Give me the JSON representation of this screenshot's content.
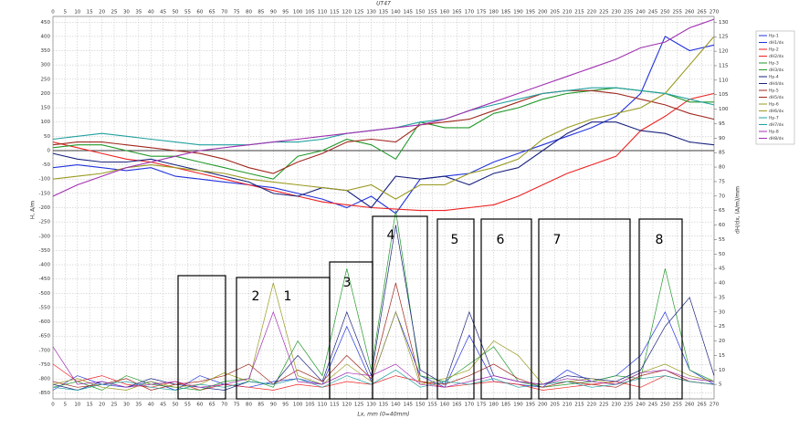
{
  "chart_data": {
    "type": "line",
    "title": "UT47",
    "x_label": "Lx, mm (0=40mm)",
    "y_label": "H, A/m",
    "y2_label": "dH/dx, (A/m)/mm",
    "x": [
      0,
      10,
      20,
      30,
      40,
      50,
      60,
      70,
      80,
      90,
      100,
      110,
      120,
      130,
      140,
      150,
      160,
      170,
      180,
      190,
      200,
      210,
      220,
      230,
      240,
      250,
      260,
      270
    ],
    "xlim": [
      0,
      270
    ],
    "ylim": [
      -870,
      470
    ],
    "y2lim": [
      0,
      132
    ],
    "grid": true,
    "legend": "right",
    "xticks": [
      0,
      5,
      10,
      15,
      20,
      25,
      30,
      35,
      40,
      45,
      50,
      55,
      60,
      65,
      70,
      75,
      80,
      85,
      90,
      95,
      100,
      105,
      110,
      115,
      120,
      125,
      130,
      135,
      140,
      145,
      150,
      155,
      160,
      165,
      170,
      175,
      180,
      185,
      190,
      195,
      200,
      205,
      210,
      215,
      220,
      225,
      230,
      235,
      240,
      245,
      250,
      255,
      260,
      265,
      270
    ],
    "yticks": [
      450,
      400,
      350,
      300,
      250,
      200,
      150,
      100,
      50,
      0,
      -50,
      -100,
      -150,
      -200,
      -250,
      -300,
      -350,
      -400,
      -450,
      -500,
      -550,
      -600,
      -650,
      -700,
      -750,
      -800,
      -850
    ],
    "y2ticks": [
      5,
      10,
      15,
      20,
      25,
      30,
      35,
      40,
      45,
      50,
      55,
      60,
      65,
      70,
      75,
      80,
      85,
      90,
      95,
      100,
      105,
      110,
      115,
      120,
      125,
      130
    ],
    "annotations": [
      "1",
      "2",
      "3",
      "4",
      "5",
      "6",
      "7",
      "8"
    ],
    "series": [
      {
        "name": "Hp-1",
        "color": "#2233dd",
        "values": [
          -60,
          -50,
          -60,
          -70,
          -60,
          -90,
          -100,
          -110,
          -120,
          -130,
          -150,
          -170,
          -200,
          -160,
          -220,
          -100,
          -90,
          -80,
          -40,
          -10,
          20,
          50,
          80,
          120,
          200,
          400,
          350,
          370
        ]
      },
      {
        "name": "dH1/dx",
        "color": "#2233dd",
        "axis": "y2",
        "values": [
          3,
          8,
          5,
          4,
          6,
          3,
          8,
          5,
          4,
          6,
          7,
          5,
          25,
          6,
          30,
          8,
          4,
          22,
          6,
          5,
          4,
          10,
          6,
          8,
          15,
          30,
          10,
          5
        ]
      },
      {
        "name": "Hp-2",
        "color": "#ee2222",
        "values": [
          30,
          10,
          -10,
          -30,
          -40,
          -60,
          -80,
          -100,
          -120,
          -140,
          -160,
          -180,
          -190,
          -200,
          -205,
          -210,
          -210,
          -200,
          -190,
          -160,
          -120,
          -80,
          -50,
          -20,
          70,
          120,
          180,
          200
        ]
      },
      {
        "name": "dH2/dx",
        "color": "#ee2222",
        "axis": "y2",
        "values": [
          12,
          6,
          8,
          5,
          4,
          6,
          3,
          5,
          4,
          3,
          5,
          4,
          6,
          5,
          8,
          6,
          4,
          5,
          6,
          5,
          3,
          4,
          5,
          6,
          4,
          8,
          6,
          5
        ]
      },
      {
        "name": "Hp-3",
        "color": "#22992a",
        "values": [
          10,
          20,
          20,
          0,
          -20,
          -20,
          -40,
          -60,
          -80,
          -100,
          -20,
          0,
          40,
          20,
          -30,
          100,
          80,
          80,
          130,
          150,
          180,
          200,
          210,
          220,
          210,
          200,
          170,
          170
        ]
      },
      {
        "name": "dH3/dx",
        "color": "#22992a",
        "axis": "y2",
        "values": [
          4,
          6,
          3,
          8,
          5,
          4,
          3,
          6,
          7,
          4,
          20,
          8,
          45,
          10,
          65,
          8,
          6,
          12,
          18,
          6,
          4,
          5,
          6,
          8,
          7,
          45,
          10,
          6
        ]
      },
      {
        "name": "Hp-4",
        "color": "#1a237e",
        "values": [
          -10,
          -30,
          -40,
          -40,
          -30,
          -50,
          -70,
          -90,
          -110,
          -150,
          -160,
          -130,
          -140,
          -200,
          -90,
          -100,
          -90,
          -120,
          -80,
          -60,
          0,
          60,
          100,
          100,
          70,
          60,
          30,
          20
        ]
      },
      {
        "name": "dH4/dx",
        "color": "#1a237e",
        "axis": "y2",
        "values": [
          5,
          3,
          6,
          4,
          7,
          5,
          4,
          3,
          6,
          5,
          15,
          6,
          30,
          8,
          60,
          10,
          5,
          30,
          8,
          6,
          5,
          8,
          7,
          6,
          10,
          25,
          35,
          8
        ]
      },
      {
        "name": "Hp-5",
        "color": "#a0281e",
        "values": [
          20,
          30,
          30,
          20,
          10,
          0,
          -10,
          -30,
          -60,
          -80,
          -40,
          -10,
          30,
          40,
          30,
          90,
          100,
          110,
          140,
          170,
          200,
          210,
          210,
          200,
          180,
          160,
          130,
          110
        ]
      },
      {
        "name": "dH5/dx",
        "color": "#a0281e",
        "axis": "y2",
        "values": [
          6,
          4,
          5,
          7,
          3,
          5,
          6,
          8,
          12,
          5,
          10,
          6,
          15,
          7,
          40,
          6,
          5,
          8,
          12,
          7,
          4,
          6,
          5,
          4,
          8,
          10,
          6,
          5
        ]
      },
      {
        "name": "Hp-6",
        "color": "#9a9a22",
        "values": [
          -100,
          -90,
          -80,
          -60,
          -50,
          -60,
          -70,
          -80,
          -100,
          -110,
          -120,
          -130,
          -140,
          -120,
          -170,
          -120,
          -120,
          -80,
          -60,
          -30,
          40,
          80,
          110,
          130,
          150,
          200,
          300,
          400
        ]
      },
      {
        "name": "dH6/dx",
        "color": "#9a9a22",
        "axis": "y2",
        "values": [
          5,
          7,
          4,
          3,
          6,
          4,
          5,
          9,
          6,
          40,
          8,
          5,
          12,
          6,
          30,
          5,
          7,
          10,
          20,
          15,
          5,
          6,
          7,
          5,
          9,
          12,
          8,
          6
        ]
      },
      {
        "name": "Hp-7",
        "color": "#22a0a0",
        "values": [
          40,
          50,
          60,
          50,
          40,
          30,
          20,
          20,
          20,
          30,
          30,
          40,
          60,
          70,
          80,
          100,
          110,
          140,
          160,
          180,
          200,
          210,
          220,
          220,
          210,
          200,
          180,
          160
        ]
      },
      {
        "name": "dH7/dx",
        "color": "#22a0a0",
        "axis": "y2",
        "values": [
          4,
          3,
          5,
          6,
          4,
          3,
          5,
          4,
          6,
          5,
          7,
          4,
          8,
          5,
          10,
          4,
          6,
          5,
          7,
          4,
          5,
          6,
          4,
          5,
          7,
          8,
          6,
          5
        ]
      },
      {
        "name": "Hp-8",
        "color": "#a030b0",
        "values": [
          -160,
          -120,
          -90,
          -60,
          -40,
          -20,
          0,
          10,
          20,
          30,
          40,
          50,
          60,
          70,
          80,
          90,
          110,
          140,
          170,
          200,
          230,
          260,
          290,
          320,
          360,
          380,
          430,
          460
        ]
      },
      {
        "name": "dH8/dx",
        "color": "#a030b0",
        "axis": "y2",
        "values": [
          18,
          5,
          6,
          4,
          5,
          6,
          4,
          5,
          7,
          30,
          6,
          5,
          9,
          8,
          12,
          5,
          4,
          6,
          8,
          6,
          5,
          7,
          6,
          5,
          9,
          10,
          7,
          6
        ]
      }
    ]
  }
}
